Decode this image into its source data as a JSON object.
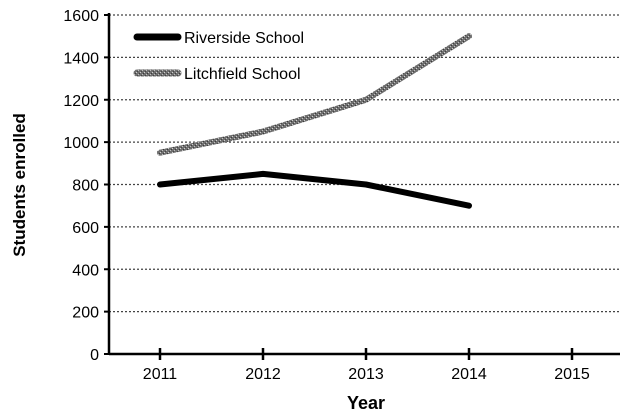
{
  "chart_data": {
    "type": "line",
    "xlabel": "Year",
    "ylabel": "Students enrolled",
    "x": [
      2011,
      2012,
      2013,
      2014,
      2015
    ],
    "ylim": [
      0,
      1600
    ],
    "yticks": [
      0,
      200,
      400,
      600,
      800,
      1000,
      1200,
      1400,
      1600
    ],
    "grid": true,
    "legend_position": "top-left",
    "series": [
      {
        "name": "Riverside School",
        "color": "#000000",
        "points": [
          [
            2011,
            800
          ],
          [
            2012,
            850
          ],
          [
            2013,
            800
          ],
          [
            2014,
            700
          ]
        ]
      },
      {
        "name": "Litchfield School",
        "color": "#777777",
        "points": [
          [
            2011,
            950
          ],
          [
            2012,
            1050
          ],
          [
            2013,
            1200
          ],
          [
            2014,
            1500
          ]
        ]
      }
    ]
  }
}
